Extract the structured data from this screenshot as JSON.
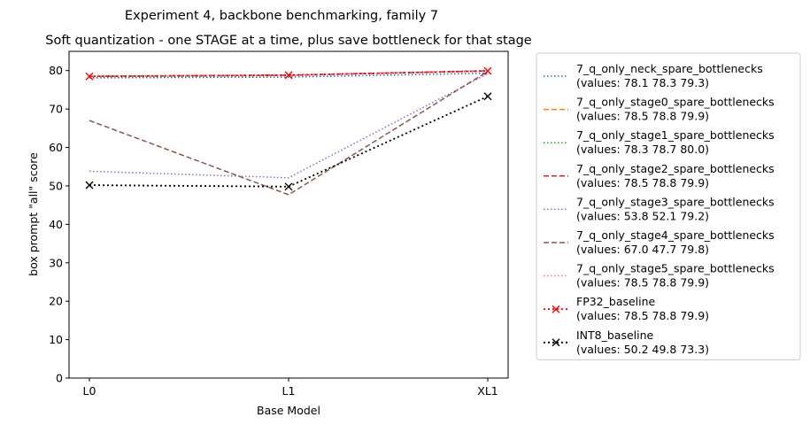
{
  "chart_data": {
    "type": "line",
    "title": "Experiment 4, backbone benchmarking, family 7",
    "subtitle": "Soft quantization - one STAGE at a time, plus save bottleneck for that stage",
    "xlabel": "Base Model",
    "ylabel": "box prompt \"all\" score",
    "categories": [
      "L0",
      "L1",
      "XL1"
    ],
    "ylim": [
      0,
      85
    ],
    "yticks": [
      "0",
      "10",
      "20",
      "30",
      "40",
      "50",
      "60",
      "70",
      "80"
    ],
    "grid": false,
    "legend_position": "outside-right",
    "series": [
      {
        "name": "7_q_only_neck_spare_bottlenecks",
        "values_label": "(values: 78.1 78.3 79.3)",
        "values": [
          78.1,
          78.3,
          79.3
        ],
        "color": "#1f77b4",
        "style": "dotted",
        "marker": ""
      },
      {
        "name": "7_q_only_stage0_spare_bottlenecks",
        "values_label": "(values: 78.5 78.8 79.9)",
        "values": [
          78.5,
          78.8,
          79.9
        ],
        "color": "#ff7f0e",
        "style": "dashed",
        "marker": ""
      },
      {
        "name": "7_q_only_stage1_spare_bottlenecks",
        "values_label": "(values: 78.3 78.7 80.0)",
        "values": [
          78.3,
          78.7,
          80.0
        ],
        "color": "#2ca02c",
        "style": "dotted",
        "marker": ""
      },
      {
        "name": "7_q_only_stage2_spare_bottlenecks",
        "values_label": "(values: 78.5 78.8 79.9)",
        "values": [
          78.5,
          78.8,
          79.9
        ],
        "color": "#d62728",
        "style": "dashed",
        "marker": ""
      },
      {
        "name": "7_q_only_stage3_spare_bottlenecks",
        "values_label": "(values: 53.8 52.1 79.2)",
        "values": [
          53.8,
          52.1,
          79.2
        ],
        "color": "#9467bd",
        "style": "dotted",
        "marker": ""
      },
      {
        "name": "7_q_only_stage4_spare_bottlenecks",
        "values_label": "(values: 67.0 47.7 79.8)",
        "values": [
          67.0,
          47.7,
          79.8
        ],
        "color": "#8c564b",
        "style": "dashed",
        "marker": ""
      },
      {
        "name": "7_q_only_stage5_spare_bottlenecks",
        "values_label": "(values: 78.5 78.8 79.9)",
        "values": [
          78.5,
          78.8,
          79.9
        ],
        "color": "#e377c2",
        "style": "dotted",
        "marker": ""
      },
      {
        "name": "FP32_baseline",
        "values_label": "(values: 78.5 78.8 79.9)",
        "values": [
          78.5,
          78.8,
          79.9
        ],
        "color": "#ff0000",
        "style": "dotted-bold",
        "marker": "x"
      },
      {
        "name": "INT8_baseline",
        "values_label": "(values: 50.2 49.8 73.3)",
        "values": [
          50.2,
          49.8,
          73.3
        ],
        "color": "#000000",
        "style": "dotted-bold",
        "marker": "x"
      }
    ]
  }
}
